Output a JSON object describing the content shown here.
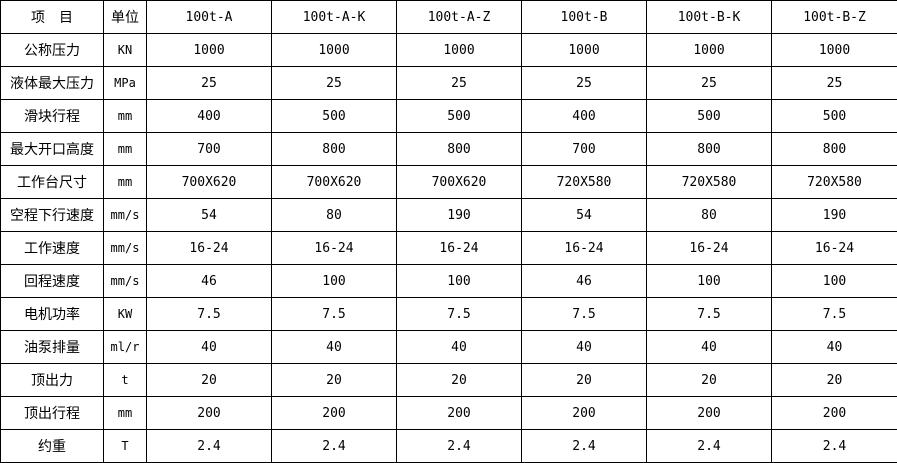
{
  "header": {
    "item": "项　目",
    "unit": "单位",
    "models": [
      "100t-A",
      "100t-A-K",
      "100t-A-Z",
      "100t-B",
      "100t-B-K",
      "100t-B-Z"
    ]
  },
  "rows": [
    {
      "item": "公称压力",
      "unit": "KN",
      "values": [
        "1000",
        "1000",
        "1000",
        "1000",
        "1000",
        "1000"
      ]
    },
    {
      "item": "液体最大压力",
      "unit": "MPa",
      "values": [
        "25",
        "25",
        "25",
        "25",
        "25",
        "25"
      ]
    },
    {
      "item": "滑块行程",
      "unit": "mm",
      "values": [
        "400",
        "500",
        "500",
        "400",
        "500",
        "500"
      ]
    },
    {
      "item": "最大开口高度",
      "unit": "mm",
      "values": [
        "700",
        "800",
        "800",
        "700",
        "800",
        "800"
      ]
    },
    {
      "item": "工作台尺寸",
      "unit": "mm",
      "values": [
        "700X620",
        "700X620",
        "700X620",
        "720X580",
        "720X580",
        "720X580"
      ]
    },
    {
      "item": "空程下行速度",
      "unit": "mm/s",
      "values": [
        "54",
        "80",
        "190",
        "54",
        "80",
        "190"
      ]
    },
    {
      "item": "工作速度",
      "unit": "mm/s",
      "values": [
        "16-24",
        "16-24",
        "16-24",
        "16-24",
        "16-24",
        "16-24"
      ]
    },
    {
      "item": "回程速度",
      "unit": "mm/s",
      "values": [
        "46",
        "100",
        "100",
        "46",
        "100",
        "100"
      ]
    },
    {
      "item": "电机功率",
      "unit": "KW",
      "values": [
        "7.5",
        "7.5",
        "7.5",
        "7.5",
        "7.5",
        "7.5"
      ]
    },
    {
      "item": "油泵排量",
      "unit": "ml/r",
      "values": [
        "40",
        "40",
        "40",
        "40",
        "40",
        "40"
      ]
    },
    {
      "item": "顶出力",
      "unit": "t",
      "values": [
        "20",
        "20",
        "20",
        "20",
        "20",
        "20"
      ]
    },
    {
      "item": "顶出行程",
      "unit": "mm",
      "values": [
        "200",
        "200",
        "200",
        "200",
        "200",
        "200"
      ]
    },
    {
      "item": "约重",
      "unit": "T",
      "values": [
        "2.4",
        "2.4",
        "2.4",
        "2.4",
        "2.4",
        "2.4"
      ]
    }
  ]
}
